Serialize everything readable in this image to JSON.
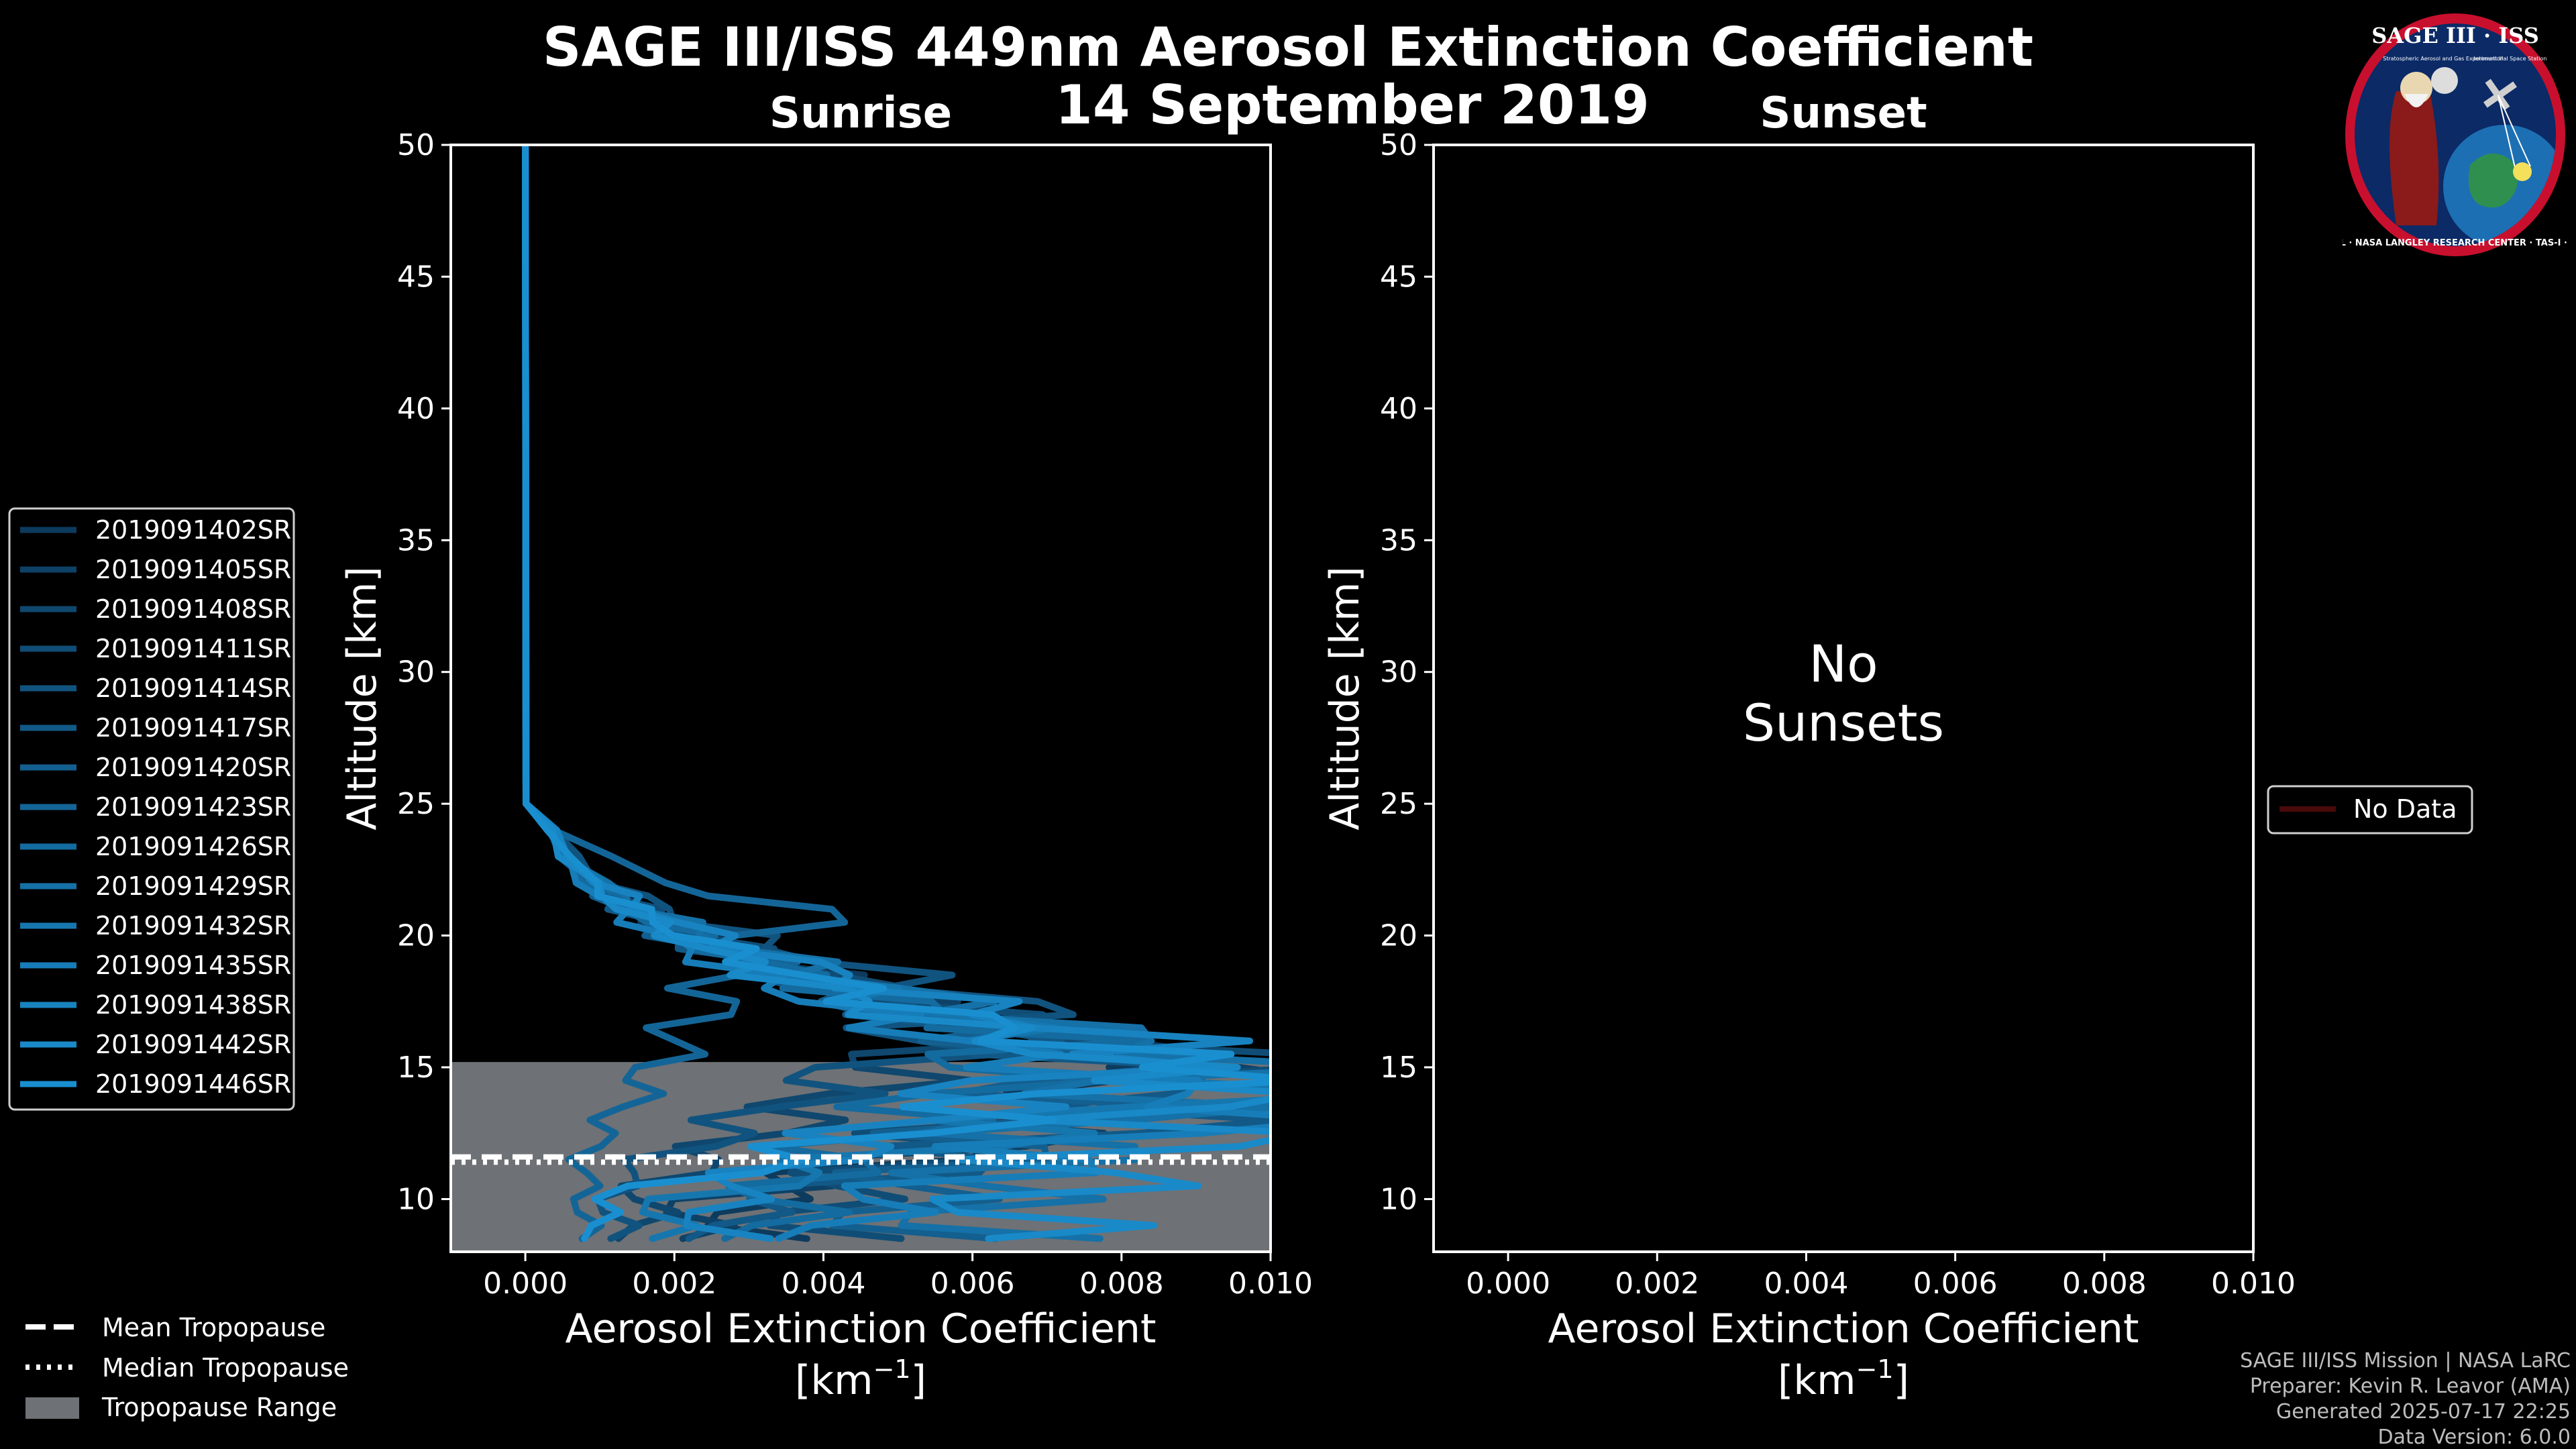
{
  "title_line1": "SAGE III/ISS 449nm Aerosol Extinction Coefficient",
  "title_line2": "14 September 2019",
  "logo": {
    "text_top": "SAGE III · ISS",
    "text_ring": "BALL · NASA LANGLEY RESEARCH CENTER · TAS-I · ESA",
    "text_sub1": "Stratospheric Aerosol and Gas Experiment III",
    "text_sub2": "International Space Station"
  },
  "footer": {
    "line1": "SAGE III/ISS Mission | NASA LaRC",
    "line2": "Preparer: Kevin R. Leavor (AMA)",
    "line3": "Generated 2025-07-17 22:25",
    "line4": "Data Version: 6.0.0"
  },
  "tropopause_legend": {
    "mean": "Mean Tropopause",
    "median": "Median Tropopause",
    "range": "Tropopause Range"
  },
  "no_data_label": "No Data",
  "no_sunsets_line1": "No",
  "no_sunsets_line2": "Sunsets",
  "colors": {
    "background": "#000000",
    "profile_dark": "#0d3b5e",
    "profile_light": "#1a8fd0",
    "tropopause_fill": "#6e7175",
    "no_data_line": "#4a0a0a"
  },
  "chart_data": [
    {
      "type": "line",
      "title": "Sunrise",
      "xlabel": "Aerosol Extinction Coefficient",
      "xlabel_units": "[km",
      "xlabel_units_exp": "−1",
      "xlabel_units_close": "]",
      "ylabel": "Altitude [km]",
      "xlim": [
        -0.001,
        0.01
      ],
      "ylim": [
        8,
        50
      ],
      "xticks": [
        0.0,
        0.002,
        0.004,
        0.006,
        0.008,
        0.01
      ],
      "xtick_labels": [
        "0.000",
        "0.002",
        "0.004",
        "0.006",
        "0.008",
        "0.010"
      ],
      "yticks": [
        10,
        15,
        20,
        25,
        30,
        35,
        40,
        45,
        50
      ],
      "ytick_labels": [
        "10",
        "15",
        "20",
        "25",
        "30",
        "35",
        "40",
        "45",
        "50"
      ],
      "tropopause": {
        "range_min": 8,
        "range_max": 15.2,
        "mean": 11.6,
        "median": 11.4
      },
      "series_names": [
        "2019091402SR",
        "2019091405SR",
        "2019091408SR",
        "2019091411SR",
        "2019091414SR",
        "2019091417SR",
        "2019091420SR",
        "2019091423SR",
        "2019091426SR",
        "2019091429SR",
        "2019091432SR",
        "2019091435SR",
        "2019091438SR",
        "2019091442SR",
        "2019091446SR"
      ],
      "altitudes": [
        50,
        45,
        40,
        35,
        30,
        28,
        26,
        25,
        24,
        23,
        22,
        21.5,
        21,
        20.5,
        20,
        19.5,
        19,
        18.5,
        18,
        17.5,
        17,
        16.5,
        16,
        15.5,
        15,
        14.5,
        14,
        13.5,
        13,
        12.5,
        12,
        11.5,
        11,
        10.5,
        10,
        9.5,
        9,
        8.5
      ],
      "profile_peaks": [
        {
          "peak_alt": 15.0,
          "peak_val": 0.0095,
          "low_val": 0.003
        },
        {
          "peak_alt": 14.5,
          "peak_val": 0.01,
          "low_val": 0.0022
        },
        {
          "peak_alt": 16.5,
          "peak_val": 0.0062,
          "low_val": 0.0016
        },
        {
          "peak_alt": 15.5,
          "peak_val": 0.0088,
          "low_val": 0.004
        },
        {
          "peak_alt": 17.5,
          "peak_val": 0.0066,
          "low_val": 0.0012
        },
        {
          "peak_alt": 14.0,
          "peak_val": 0.01,
          "low_val": 0.0028
        },
        {
          "peak_alt": 15.0,
          "peak_val": 0.0079,
          "low_val": 0.005
        },
        {
          "peak_alt": 21.0,
          "peak_val": 0.0035,
          "low_val": 0.0008
        },
        {
          "peak_alt": 16.0,
          "peak_val": 0.0071,
          "low_val": 0.0034
        },
        {
          "peak_alt": 15.5,
          "peak_val": 0.0093,
          "low_val": 0.0061
        },
        {
          "peak_alt": 14.5,
          "peak_val": 0.01,
          "low_val": 0.0018
        },
        {
          "peak_alt": 13.5,
          "peak_val": 0.0097,
          "low_val": 0.0043
        },
        {
          "peak_alt": 16.0,
          "peak_val": 0.0083,
          "low_val": 0.0026
        },
        {
          "peak_alt": 14.0,
          "peak_val": 0.01,
          "low_val": 0.0066
        },
        {
          "peak_alt": 15.0,
          "peak_val": 0.009,
          "low_val": 0.001
        }
      ]
    },
    {
      "type": "line",
      "title": "Sunset",
      "xlabel": "Aerosol Extinction Coefficient",
      "xlabel_units": "[km",
      "xlabel_units_exp": "−1",
      "xlabel_units_close": "]",
      "ylabel": "Altitude [km]",
      "xlim": [
        -0.001,
        0.01
      ],
      "ylim": [
        8,
        50
      ],
      "xticks": [
        0.0,
        0.002,
        0.004,
        0.006,
        0.008,
        0.01
      ],
      "xtick_labels": [
        "0.000",
        "0.002",
        "0.004",
        "0.006",
        "0.008",
        "0.010"
      ],
      "yticks": [
        10,
        15,
        20,
        25,
        30,
        35,
        40,
        45,
        50
      ],
      "ytick_labels": [
        "10",
        "15",
        "20",
        "25",
        "30",
        "35",
        "40",
        "45",
        "50"
      ],
      "series_names": [
        "No Data"
      ]
    }
  ]
}
